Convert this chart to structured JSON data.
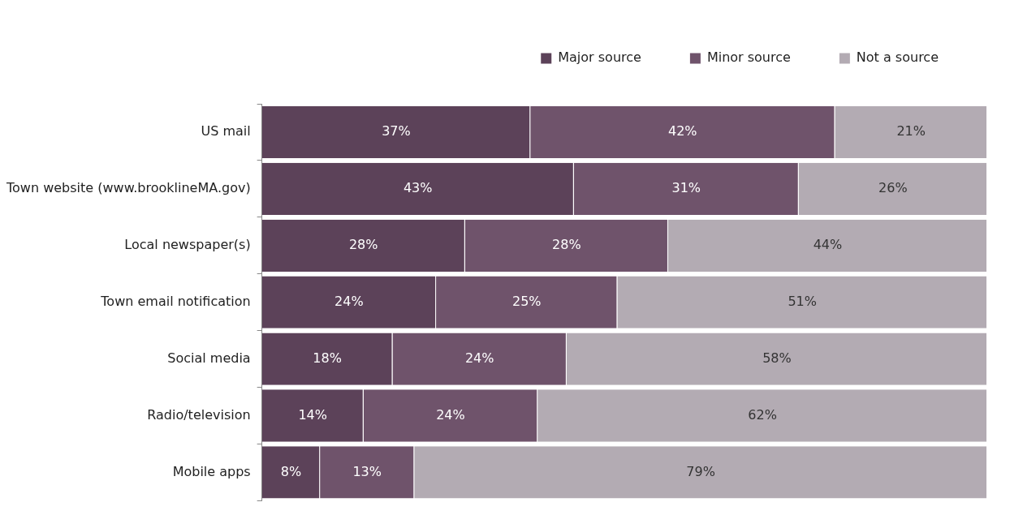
{
  "chart_data": {
    "type": "bar",
    "orientation": "horizontal",
    "stacked": true,
    "legend": "top right",
    "xlim": [
      0,
      100
    ],
    "categories": [
      "US mail",
      "Town website (www.brooklineMA.gov)",
      "Local newspaper(s)",
      "Town email notification",
      "Social media",
      "Radio/television",
      "Mobile apps"
    ],
    "series": [
      {
        "name": "Major source",
        "color": "#5c4259",
        "values": [
          37,
          43,
          28,
          24,
          18,
          14,
          8
        ],
        "value_labels": [
          "37%",
          "43%",
          "28%",
          "24%",
          "18%",
          "14%",
          "8%"
        ]
      },
      {
        "name": "Minor source",
        "color": "#6f536b",
        "values": [
          42,
          31,
          28,
          25,
          24,
          24,
          13
        ],
        "value_labels": [
          "42%",
          "31%",
          "28%",
          "25%",
          "24%",
          "24%",
          "13%"
        ]
      },
      {
        "name": "Not a source",
        "color": "#b3abb3",
        "values": [
          21,
          26,
          44,
          51,
          58,
          62,
          79
        ],
        "value_labels": [
          "21%",
          "26%",
          "44%",
          "51%",
          "58%",
          "62%",
          "79%"
        ]
      }
    ]
  }
}
